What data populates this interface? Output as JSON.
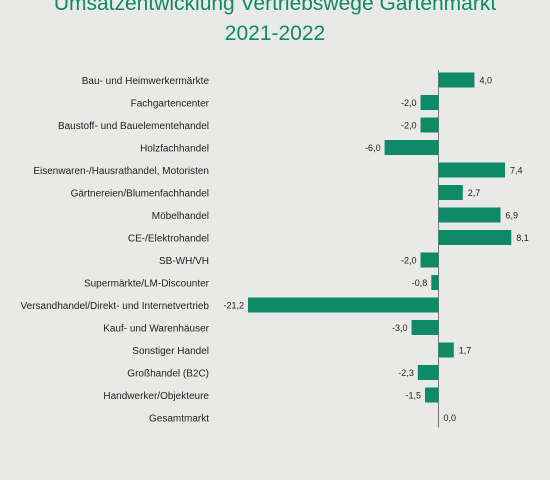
{
  "chart_data": {
    "type": "bar",
    "orientation": "horizontal",
    "title": [
      "Umsatzentwicklung Vertriebswege Gartenmarkt",
      "2021-2022"
    ],
    "categories": [
      "Bau- und Heimwerkermärkte",
      "Fachgartencenter",
      "Baustoff- und Bauelementehandel",
      "Holzfachhandel",
      "Eisenwaren-/Hausrathandel, Motoristen",
      "Gärtnereien/Blumenfachhandel",
      "Möbelhandel",
      "CE-/Elektrohandel",
      "SB-WH/VH",
      "Supermärkte/LM-Discounter",
      "Versandhandel/Direkt- und Internetvertrieb",
      "Kauf- und Warenhäuser",
      "Sonstiger Handel",
      "Großhandel (B2C)",
      "Handwerker/Objekteure",
      "Gesamtmarkt"
    ],
    "values": [
      4.0,
      -2.0,
      -2.0,
      -6.0,
      7.4,
      2.7,
      6.9,
      8.1,
      -2.0,
      -0.8,
      -21.2,
      -3.0,
      1.7,
      -2.3,
      -1.5,
      0.0
    ],
    "value_labels": [
      "4,0",
      "-2,0",
      "-2,0",
      "-6,0",
      "7,4",
      "2,7",
      "6,9",
      "8,1",
      "-2,0",
      "-0,8",
      "-21,2",
      "-3,0",
      "1,7",
      "-2,3",
      "-1,5",
      "0,0"
    ],
    "xlim": [
      -21.2,
      8.1
    ],
    "grid": false,
    "colors": {
      "bar": "#0e8a67",
      "title": "#0e8a67",
      "text": "#222222",
      "axis": "#777777",
      "background": "#e9e9e7"
    }
  }
}
